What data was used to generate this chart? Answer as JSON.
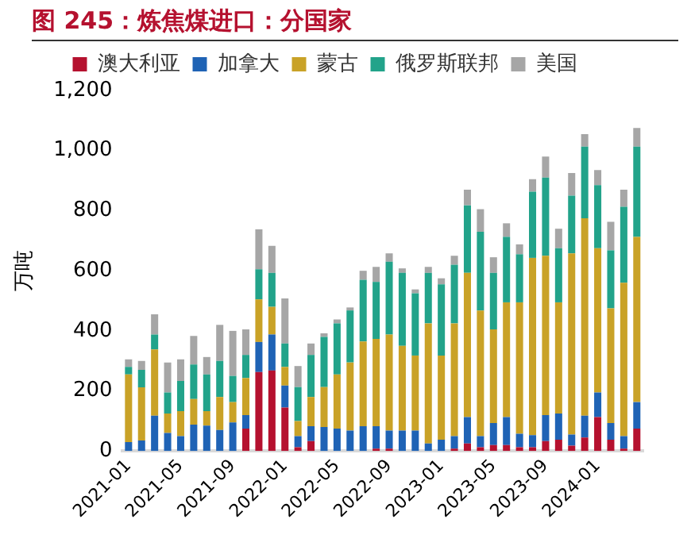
{
  "chart_data": {
    "type": "bar",
    "title": "图 245：炼焦煤进口：分国家",
    "ylabel": "万吨",
    "stacked": true,
    "legend": "top",
    "grid": false,
    "categories": [
      "2021-01",
      null,
      null,
      null,
      "2021-05",
      null,
      null,
      null,
      "2021-09",
      null,
      null,
      null,
      "2022-01",
      null,
      null,
      null,
      "2022-05",
      null,
      null,
      null,
      "2022-09",
      null,
      null,
      null,
      "2023-01",
      null,
      null,
      null,
      "2023-05",
      null,
      null,
      null,
      "2023-09",
      null,
      null,
      null,
      "2024-01",
      null,
      null,
      null
    ],
    "ylim": [
      0,
      1200
    ],
    "yticks": [
      0,
      200,
      400,
      600,
      800,
      {
        "value": 1000,
        "label": "1,000"
      },
      {
        "value": 1200,
        "label": "1,200"
      }
    ],
    "series": [
      {
        "name": "澳大利亚",
        "color": "#b5112f",
        "values": [
          0,
          0,
          0,
          0,
          0,
          0,
          0,
          0,
          0,
          75,
          263,
          268,
          145,
          13,
          33,
          0,
          0,
          0,
          0,
          8,
          8,
          0,
          0,
          0,
          0,
          8,
          25,
          13,
          20,
          20,
          13,
          13,
          33,
          38,
          18,
          45,
          113,
          38,
          8,
          75
        ]
      },
      {
        "name": "加拿大",
        "color": "#1f63b5",
        "values": [
          30,
          35,
          118,
          60,
          50,
          88,
          85,
          70,
          95,
          45,
          100,
          120,
          73,
          37,
          50,
          80,
          75,
          68,
          83,
          75,
          60,
          68,
          68,
          25,
          38,
          42,
          88,
          37,
          73,
          93,
          45,
          40,
          87,
          87,
          37,
          73,
          82,
          55,
          42,
          88
        ]
      },
      {
        "name": "蒙古",
        "color": "#c9a227",
        "values": [
          225,
          177,
          220,
          65,
          83,
          85,
          48,
          110,
          68,
          123,
          142,
          92,
          62,
          50,
          97,
          133,
          180,
          227,
          282,
          290,
          320,
          282,
          250,
          400,
          280,
          375,
          480,
          418,
          312,
          382,
          437,
          590,
          530,
          370,
          603,
          657,
          480,
          382,
          510,
          550
        ]
      },
      {
        "name": "俄罗斯联邦",
        "color": "#22a38a",
        "values": [
          25,
          58,
          50,
          70,
          100,
          115,
          122,
          120,
          87,
          77,
          100,
          113,
          78,
          113,
          140,
          167,
          170,
          173,
          205,
          190,
          242,
          243,
          207,
          168,
          237,
          195,
          225,
          262,
          188,
          218,
          160,
          220,
          260,
          180,
          192,
          238,
          210,
          193,
          253,
          300
        ]
      },
      {
        "name": "美国",
        "color": "#a6a6a6",
        "values": [
          25,
          30,
          67,
          100,
          72,
          95,
          58,
          120,
          150,
          85,
          133,
          90,
          150,
          70,
          38,
          12,
          13,
          10,
          30,
          50,
          28,
          15,
          13,
          20,
          20,
          30,
          52,
          75,
          52,
          45,
          33,
          42,
          70,
          65,
          75,
          42,
          50,
          95,
          57,
          62
        ]
      }
    ]
  }
}
